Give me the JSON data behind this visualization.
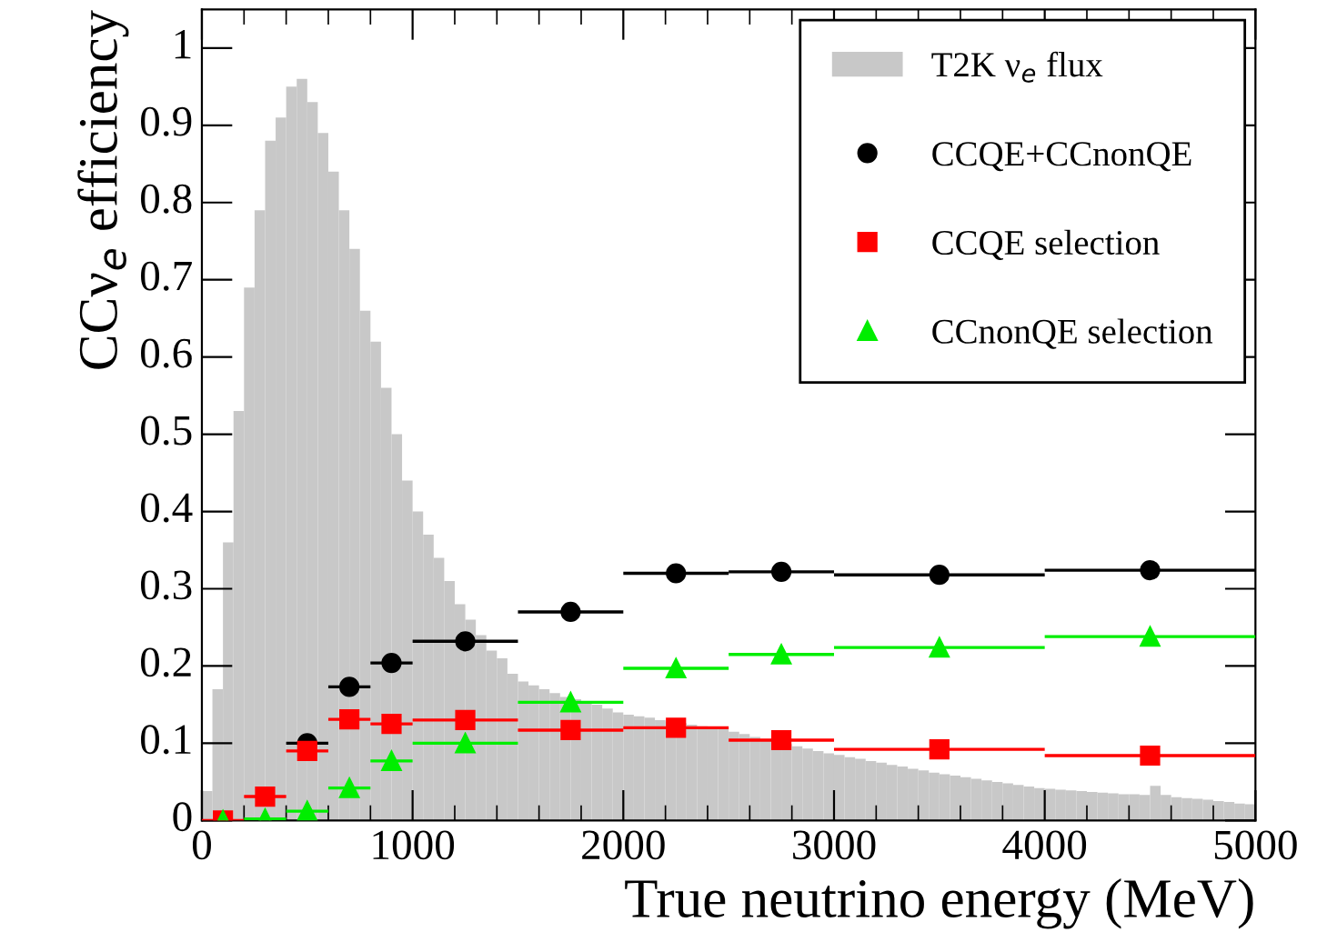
{
  "chart_data": {
    "type": "scatter",
    "xlabel": "True neutrino energy (MeV)",
    "ylabel": "CCν$_{e}$ efficiency",
    "xlim": [
      0,
      5000
    ],
    "xticks": [
      0,
      1000,
      2000,
      3000,
      4000,
      5000
    ],
    "ylim": [
      0,
      1.05
    ],
    "yticks": [
      0,
      0.1,
      0.2,
      0.3,
      0.4,
      0.5,
      0.6,
      0.7,
      0.8,
      0.9,
      1
    ],
    "grid": false,
    "legend": "top right",
    "series": [
      {
        "name": "T2K ν$_{e}$ flux",
        "type": "histogram",
        "color": "#c8c8c8",
        "bins": [
          0,
          50,
          100,
          150,
          200,
          250,
          300,
          350,
          400,
          450,
          500,
          550,
          600,
          650,
          700,
          750,
          800,
          850,
          900,
          950,
          1000,
          1050,
          1100,
          1150,
          1200,
          1250,
          1300,
          1350,
          1400,
          1450,
          1500,
          1550,
          1600,
          1650,
          1700,
          1750,
          1800,
          1850,
          1900,
          1950,
          2000,
          2050,
          2100,
          2150,
          2200,
          2250,
          2300,
          2350,
          2400,
          2450,
          2500,
          2550,
          2600,
          2650,
          2700,
          2750,
          2800,
          2850,
          2900,
          2950,
          3000,
          3050,
          3100,
          3150,
          3200,
          3250,
          3300,
          3350,
          3400,
          3450,
          3500,
          3550,
          3600,
          3650,
          3700,
          3750,
          3800,
          3850,
          3900,
          3950,
          4000,
          4050,
          4100,
          4150,
          4200,
          4250,
          4300,
          4350,
          4400,
          4450,
          4500,
          4550,
          4600,
          4650,
          4700,
          4750,
          4800,
          4850,
          4900,
          4950,
          5000
        ],
        "values": [
          0.038,
          0.17,
          0.36,
          0.53,
          0.69,
          0.79,
          0.88,
          0.91,
          0.95,
          0.96,
          0.93,
          0.89,
          0.84,
          0.79,
          0.74,
          0.66,
          0.62,
          0.56,
          0.5,
          0.44,
          0.4,
          0.37,
          0.34,
          0.31,
          0.28,
          0.26,
          0.24,
          0.22,
          0.21,
          0.19,
          0.18,
          0.175,
          0.17,
          0.165,
          0.16,
          0.157,
          0.153,
          0.15,
          0.145,
          0.14,
          0.137,
          0.135,
          0.133,
          0.13,
          0.128,
          0.126,
          0.124,
          0.122,
          0.12,
          0.118,
          0.115,
          0.112,
          0.108,
          0.105,
          0.102,
          0.099,
          0.096,
          0.093,
          0.09,
          0.087,
          0.085,
          0.082,
          0.08,
          0.077,
          0.075,
          0.072,
          0.07,
          0.067,
          0.065,
          0.062,
          0.06,
          0.058,
          0.056,
          0.054,
          0.052,
          0.05,
          0.048,
          0.046,
          0.044,
          0.042,
          0.041,
          0.04,
          0.039,
          0.038,
          0.037,
          0.036,
          0.035,
          0.034,
          0.034,
          0.033,
          0.045,
          0.033,
          0.03,
          0.029,
          0.028,
          0.027,
          0.025,
          0.024,
          0.022,
          0.021
        ]
      },
      {
        "name": "CCQE+CCnonQE",
        "marker": "circle",
        "color": "#000000",
        "x": [
          500,
          700,
          900,
          1250,
          1750,
          2250,
          2750,
          3500,
          4500
        ],
        "xerrors": [
          100,
          100,
          100,
          250,
          250,
          250,
          250,
          500,
          500
        ],
        "values": [
          0.1,
          0.173,
          0.204,
          0.232,
          0.27,
          0.32,
          0.322,
          0.318,
          0.324
        ],
        "errors": [
          0.005,
          0.006,
          0.008,
          0.005,
          0.006,
          0.007,
          0.007,
          0.004,
          0.007
        ]
      },
      {
        "name": "CCQE selection",
        "marker": "square",
        "color": "#ff0000",
        "x": [
          100,
          300,
          500,
          700,
          900,
          1250,
          1750,
          2250,
          2750,
          3500,
          4500
        ],
        "xerrors": [
          100,
          100,
          100,
          100,
          100,
          250,
          250,
          250,
          250,
          500,
          500
        ],
        "values": [
          0,
          0.031,
          0.09,
          0.131,
          0.125,
          0.13,
          0.117,
          0.12,
          0.104,
          0.092,
          0.084
        ],
        "errors": [
          null,
          0.004,
          null,
          0.005,
          0.005,
          0.004,
          0.004,
          0.004,
          0.004,
          0.003,
          0.004
        ]
      },
      {
        "name": "CCnonQE selection",
        "marker": "triangle",
        "color": "#00ee00",
        "x": [
          100,
          300,
          500,
          700,
          900,
          1250,
          1750,
          2250,
          2750,
          3500,
          4500
        ],
        "xerrors": [
          null,
          100,
          100,
          100,
          100,
          250,
          250,
          250,
          250,
          500,
          500
        ],
        "values": [
          0,
          0.002,
          0.012,
          0.042,
          0.077,
          0.1,
          0.153,
          0.197,
          0.215,
          0.224,
          0.238
        ],
        "errors": [
          null,
          null,
          0.003,
          0.004,
          0.005,
          0.004,
          0.005,
          0.005,
          0.006,
          0.006,
          0.01
        ]
      }
    ]
  }
}
